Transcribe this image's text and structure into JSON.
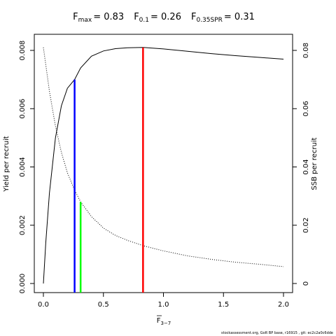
{
  "chart_data": {
    "type": "line",
    "title_parts": [
      {
        "base": "F",
        "sub": "max",
        "value": "= 0.83"
      },
      {
        "base": "F",
        "sub": "0.1",
        "value": "= 0.26"
      },
      {
        "base": "F",
        "sub": "0.35SPR",
        "value": "= 0.31"
      }
    ],
    "xlabel_base": "F",
    "xlabel_sub": "3−7",
    "ylabel_left": "Yield per recruit",
    "ylabel_right": "SSB per recruit",
    "xlim": [
      0,
      2
    ],
    "ylim_left": [
      0,
      0.0084
    ],
    "ylim_right": [
      0,
      0.084
    ],
    "x_ticks": [
      0,
      0.5,
      1,
      1.5,
      2
    ],
    "x_tick_labels": [
      "0.0",
      "0.5",
      "1.0",
      "1.5",
      "2.0"
    ],
    "y_left_ticks": [
      0,
      0.002,
      0.004,
      0.006,
      0.008
    ],
    "y_left_tick_labels": [
      "0.000",
      "0.002",
      "0.004",
      "0.006",
      "0.008"
    ],
    "y_right_ticks": [
      0,
      0.02,
      0.04,
      0.06,
      0.08
    ],
    "y_right_tick_labels": [
      "0",
      "0.02",
      "0.04",
      "0.06",
      "0.08"
    ],
    "series": [
      {
        "style": "solid",
        "axis": "left",
        "x": [
          0,
          0.02,
          0.05,
          0.1,
          0.15,
          0.2,
          0.26,
          0.31,
          0.4,
          0.5,
          0.6,
          0.7,
          0.83,
          1.0,
          1.2,
          1.4,
          1.6,
          1.8,
          2.0
        ],
        "y": [
          0,
          0.0014,
          0.0031,
          0.005,
          0.0061,
          0.0067,
          0.007,
          0.0074,
          0.0078,
          0.00798,
          0.00806,
          0.00809,
          0.0081,
          0.00805,
          0.00797,
          0.00789,
          0.00782,
          0.00776,
          0.0077
        ]
      },
      {
        "style": "dotted",
        "axis": "right",
        "x": [
          0,
          0.05,
          0.1,
          0.15,
          0.2,
          0.26,
          0.31,
          0.4,
          0.5,
          0.6,
          0.7,
          0.83,
          1.0,
          1.2,
          1.4,
          1.6,
          1.8,
          2.0
        ],
        "y": [
          0.081,
          0.066,
          0.054,
          0.045,
          0.038,
          0.032,
          0.028,
          0.023,
          0.019,
          0.0165,
          0.0148,
          0.013,
          0.0112,
          0.0095,
          0.0083,
          0.0073,
          0.0066,
          0.0058
        ]
      }
    ],
    "reference_lines": [
      {
        "x": 0.26,
        "y_top": 0.007,
        "color": "#0000ff"
      },
      {
        "x": 0.31,
        "y_top": 0.0028,
        "color": "#00ff00"
      },
      {
        "x": 0.83,
        "y_top": 0.0081,
        "color": "#ff0000"
      }
    ]
  },
  "footer": "stockassessment.org, GoR BP base, r16915 , git: ec2c2a0c6dde"
}
